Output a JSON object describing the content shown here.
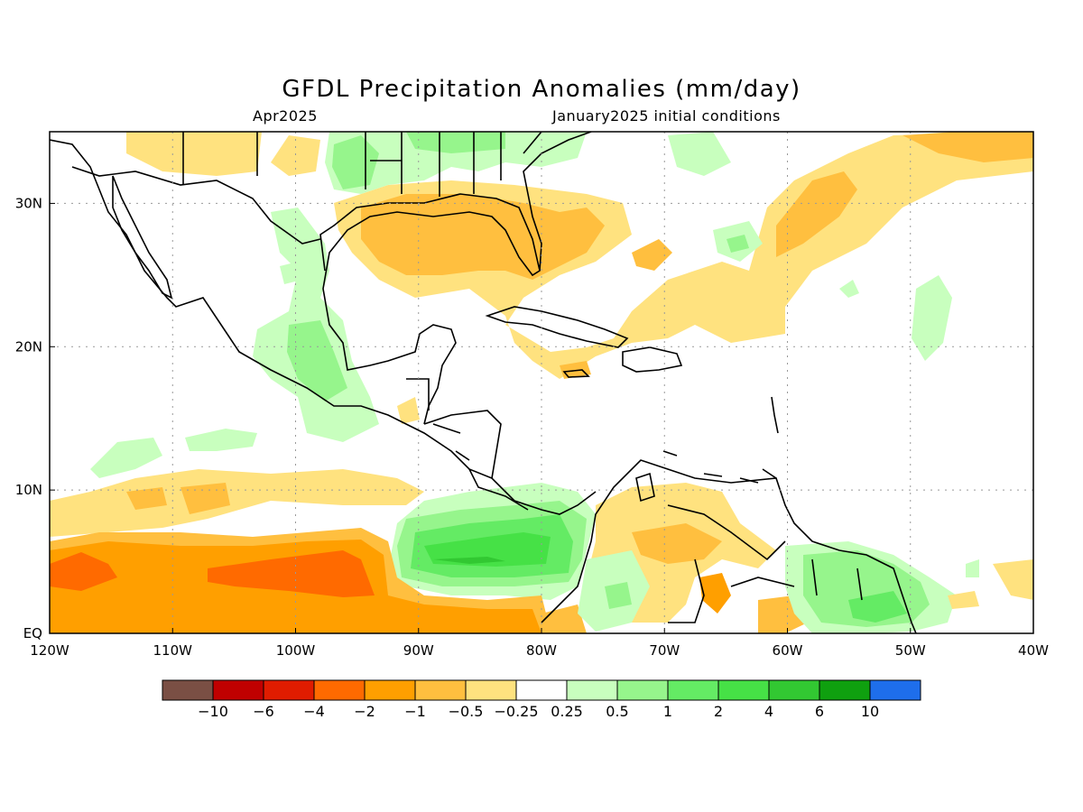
{
  "title": "GFDL Precipitation Anomalies (mm/day)",
  "subtitle_left": "Apr2025",
  "subtitle_right": "January2025 initial conditions",
  "map": {
    "region": {
      "lon_min": -120,
      "lon_max": -40,
      "lat_min": 0,
      "lat_max": 35
    },
    "x_ticks": [
      {
        "lon": -120,
        "label": "120W"
      },
      {
        "lon": -110,
        "label": "110W"
      },
      {
        "lon": -100,
        "label": "100W"
      },
      {
        "lon": -90,
        "label": "90W"
      },
      {
        "lon": -80,
        "label": "80W"
      },
      {
        "lon": -70,
        "label": "70W"
      },
      {
        "lon": -60,
        "label": "60W"
      },
      {
        "lon": -50,
        "label": "50W"
      },
      {
        "lon": -40,
        "label": "40W"
      }
    ],
    "y_ticks": [
      {
        "lat": 0,
        "label": "EQ"
      },
      {
        "lat": 10,
        "label": "10N"
      },
      {
        "lat": 20,
        "label": "20N"
      },
      {
        "lat": 30,
        "label": "30N"
      }
    ],
    "grid": true
  },
  "colorbar": {
    "colors": [
      "#7a4f44",
      "#c00000",
      "#e01c00",
      "#ff6a00",
      "#ff9f00",
      "#ffbf3f",
      "#ffe27f",
      "#ffffff",
      "#c8ffbe",
      "#96f58c",
      "#64eb64",
      "#46e146",
      "#32c832",
      "#0fa00f",
      "#1e6eeb"
    ],
    "labels": [
      "−10",
      "−6",
      "−4",
      "−2",
      "−1",
      "−0.5",
      "−0.25",
      "0.25",
      "0.5",
      "1",
      "2",
      "4",
      "6",
      "10"
    ]
  }
}
